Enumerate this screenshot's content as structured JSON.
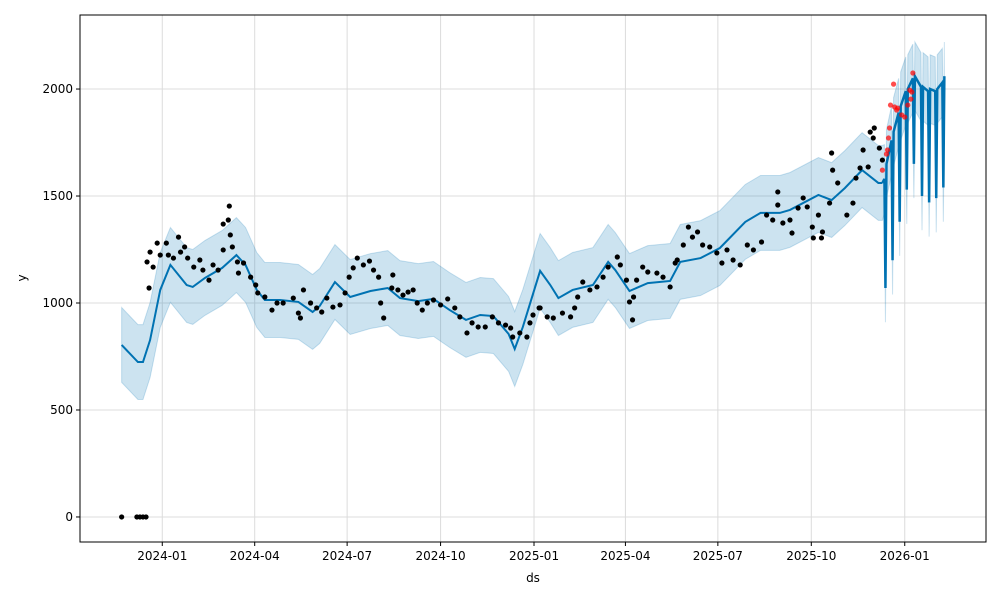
{
  "chart_data": {
    "type": "line",
    "title": "",
    "xlabel": "ds",
    "ylabel": "y",
    "x_origin_date": "2024-01-01",
    "x_units": "days since 2024-01-01",
    "ylim": [
      -117,
      2346
    ],
    "xlim": [
      -81,
      811
    ],
    "grid": true,
    "colors": {
      "forecast": "#0072B2",
      "interval": "#0072B2",
      "history_points": "#000000",
      "recent_points": "#ff0000"
    },
    "x_ticks": [
      {
        "day": 0,
        "label": "2024-01"
      },
      {
        "day": 91,
        "label": "2024-04"
      },
      {
        "day": 182,
        "label": "2024-07"
      },
      {
        "day": 274,
        "label": "2024-10"
      },
      {
        "day": 366,
        "label": "2025-01"
      },
      {
        "day": 456,
        "label": "2025-04"
      },
      {
        "day": 547,
        "label": "2025-07"
      },
      {
        "day": 639,
        "label": "2025-10"
      },
      {
        "day": 731,
        "label": "2026-01"
      }
    ],
    "y_ticks": [
      {
        "value": 0,
        "label": "0"
      },
      {
        "value": 500,
        "label": "500"
      },
      {
        "value": 1000,
        "label": "1000"
      },
      {
        "value": 1500,
        "label": "1500"
      },
      {
        "value": 2000,
        "label": "2000"
      }
    ],
    "history_interval_halfwidth": 175,
    "forecast_interval_halfwidth": 160,
    "yhat_history": [
      [
        -40,
        804
      ],
      [
        -24,
        724
      ],
      [
        -19,
        724
      ],
      [
        -12,
        827
      ],
      [
        -2,
        1061
      ],
      [
        8,
        1178
      ],
      [
        24,
        1084
      ],
      [
        30,
        1075
      ],
      [
        42,
        1117
      ],
      [
        59,
        1164
      ],
      [
        73,
        1224
      ],
      [
        82,
        1178
      ],
      [
        93,
        1061
      ],
      [
        101,
        1014
      ],
      [
        116,
        1014
      ],
      [
        134,
        1005
      ],
      [
        148,
        958
      ],
      [
        155,
        986
      ],
      [
        170,
        1098
      ],
      [
        185,
        1028
      ],
      [
        205,
        1056
      ],
      [
        222,
        1070
      ],
      [
        234,
        1023
      ],
      [
        252,
        1009
      ],
      [
        267,
        1019
      ],
      [
        283,
        967
      ],
      [
        299,
        921
      ],
      [
        313,
        944
      ],
      [
        326,
        939
      ],
      [
        341,
        855
      ],
      [
        347,
        785
      ],
      [
        355,
        888
      ],
      [
        372,
        1150
      ],
      [
        382,
        1084
      ],
      [
        390,
        1023
      ],
      [
        404,
        1061
      ],
      [
        424,
        1084
      ],
      [
        439,
        1192
      ],
      [
        446,
        1154
      ],
      [
        460,
        1056
      ],
      [
        478,
        1093
      ],
      [
        500,
        1103
      ],
      [
        510,
        1192
      ],
      [
        530,
        1210
      ],
      [
        549,
        1257
      ],
      [
        574,
        1379
      ],
      [
        589,
        1421
      ],
      [
        608,
        1421
      ],
      [
        618,
        1435
      ],
      [
        646,
        1505
      ],
      [
        659,
        1481
      ],
      [
        672,
        1537
      ],
      [
        689,
        1621
      ],
      [
        705,
        1561
      ],
      [
        709,
        1561
      ]
    ],
    "yhat_forecast": [
      [
        709,
        1561
      ],
      [
        711,
        1580
      ],
      [
        712,
        1070
      ],
      [
        713,
        1650
      ],
      [
        718,
        1760
      ],
      [
        719,
        1200
      ],
      [
        720,
        1800
      ],
      [
        725,
        1890
      ],
      [
        726,
        1380
      ],
      [
        727,
        1920
      ],
      [
        732,
        1990
      ],
      [
        733,
        1530
      ],
      [
        734,
        2000
      ],
      [
        739,
        2050
      ],
      [
        740,
        1650
      ],
      [
        741,
        2060
      ],
      [
        747,
        2010
      ],
      [
        748,
        1500
      ],
      [
        749,
        2010
      ],
      [
        754,
        1990
      ],
      [
        755,
        1470
      ],
      [
        756,
        2000
      ],
      [
        761,
        1990
      ],
      [
        762,
        1490
      ],
      [
        763,
        2000
      ],
      [
        768,
        2030
      ],
      [
        769,
        1540
      ],
      [
        770,
        2060
      ]
    ],
    "observed": [
      [
        -40,
        0
      ],
      [
        -25,
        0
      ],
      [
        -22,
        0
      ],
      [
        -19,
        0
      ],
      [
        -16,
        0
      ],
      [
        -15,
        1192
      ],
      [
        -12,
        1238
      ],
      [
        -13,
        1070
      ],
      [
        -9,
        1168
      ],
      [
        -5,
        1280
      ],
      [
        -2,
        1224
      ],
      [
        4,
        1280
      ],
      [
        6,
        1224
      ],
      [
        11,
        1210
      ],
      [
        16,
        1308
      ],
      [
        18,
        1238
      ],
      [
        22,
        1262
      ],
      [
        25,
        1210
      ],
      [
        31,
        1168
      ],
      [
        37,
        1201
      ],
      [
        40,
        1154
      ],
      [
        46,
        1107
      ],
      [
        50,
        1178
      ],
      [
        55,
        1154
      ],
      [
        60,
        1369
      ],
      [
        60,
        1248
      ],
      [
        65,
        1388
      ],
      [
        66,
        1453
      ],
      [
        67,
        1318
      ],
      [
        69,
        1262
      ],
      [
        74,
        1192
      ],
      [
        75,
        1140
      ],
      [
        80,
        1187
      ],
      [
        87,
        1121
      ],
      [
        92,
        1084
      ],
      [
        94,
        1047
      ],
      [
        101,
        1028
      ],
      [
        108,
        967
      ],
      [
        113,
        1000
      ],
      [
        119,
        1000
      ],
      [
        129,
        1023
      ],
      [
        134,
        953
      ],
      [
        136,
        930
      ],
      [
        139,
        1061
      ],
      [
        146,
        1000
      ],
      [
        152,
        977
      ],
      [
        157,
        958
      ],
      [
        162,
        1023
      ],
      [
        168,
        981
      ],
      [
        175,
        991
      ],
      [
        180,
        1047
      ],
      [
        184,
        1121
      ],
      [
        188,
        1164
      ],
      [
        192,
        1210
      ],
      [
        198,
        1178
      ],
      [
        204,
        1196
      ],
      [
        208,
        1154
      ],
      [
        213,
        1121
      ],
      [
        215,
        1000
      ],
      [
        218,
        930
      ],
      [
        226,
        1070
      ],
      [
        227,
        1131
      ],
      [
        232,
        1061
      ],
      [
        237,
        1037
      ],
      [
        242,
        1051
      ],
      [
        247,
        1061
      ],
      [
        251,
        1000
      ],
      [
        256,
        967
      ],
      [
        261,
        1000
      ],
      [
        267,
        1014
      ],
      [
        274,
        991
      ],
      [
        281,
        1019
      ],
      [
        288,
        977
      ],
      [
        293,
        935
      ],
      [
        300,
        860
      ],
      [
        305,
        907
      ],
      [
        311,
        888
      ],
      [
        318,
        888
      ],
      [
        325,
        935
      ],
      [
        331,
        907
      ],
      [
        338,
        897
      ],
      [
        343,
        883
      ],
      [
        345,
        841
      ],
      [
        352,
        860
      ],
      [
        359,
        841
      ],
      [
        362,
        907
      ],
      [
        365,
        944
      ],
      [
        371,
        977
      ],
      [
        372,
        977
      ],
      [
        379,
        935
      ],
      [
        385,
        930
      ],
      [
        394,
        953
      ],
      [
        402,
        935
      ],
      [
        406,
        977
      ],
      [
        409,
        1028
      ],
      [
        414,
        1098
      ],
      [
        421,
        1061
      ],
      [
        428,
        1075
      ],
      [
        434,
        1121
      ],
      [
        439,
        1168
      ],
      [
        448,
        1215
      ],
      [
        451,
        1178
      ],
      [
        457,
        1107
      ],
      [
        460,
        1005
      ],
      [
        464,
        1028
      ],
      [
        463,
        921
      ],
      [
        467,
        1107
      ],
      [
        473,
        1168
      ],
      [
        478,
        1145
      ],
      [
        487,
        1140
      ],
      [
        493,
        1121
      ],
      [
        500,
        1075
      ],
      [
        505,
        1187
      ],
      [
        507,
        1201
      ],
      [
        513,
        1271
      ],
      [
        518,
        1355
      ],
      [
        522,
        1308
      ],
      [
        527,
        1332
      ],
      [
        532,
        1271
      ],
      [
        539,
        1262
      ],
      [
        546,
        1234
      ],
      [
        551,
        1187
      ],
      [
        556,
        1248
      ],
      [
        562,
        1201
      ],
      [
        569,
        1178
      ],
      [
        576,
        1271
      ],
      [
        582,
        1248
      ],
      [
        590,
        1285
      ],
      [
        595,
        1411
      ],
      [
        601,
        1388
      ],
      [
        606,
        1519
      ],
      [
        606,
        1458
      ],
      [
        611,
        1374
      ],
      [
        618,
        1388
      ],
      [
        620,
        1327
      ],
      [
        626,
        1444
      ],
      [
        631,
        1491
      ],
      [
        635,
        1449
      ],
      [
        640,
        1355
      ],
      [
        641,
        1304
      ],
      [
        646,
        1411
      ],
      [
        650,
        1332
      ],
      [
        649,
        1304
      ],
      [
        657,
        1467
      ],
      [
        660,
        1621
      ],
      [
        665,
        1561
      ],
      [
        659,
        1701
      ],
      [
        674,
        1411
      ],
      [
        680,
        1467
      ],
      [
        683,
        1584
      ],
      [
        687,
        1631
      ],
      [
        690,
        1715
      ],
      [
        695,
        1636
      ],
      [
        697,
        1799
      ],
      [
        701,
        1818
      ],
      [
        700,
        1771
      ],
      [
        706,
        1724
      ],
      [
        709,
        1668
      ]
    ],
    "recent_observed": [
      [
        709,
        1621
      ],
      [
        713,
        1696
      ],
      [
        714,
        1715
      ],
      [
        715,
        1771
      ],
      [
        716,
        1818
      ],
      [
        717,
        1925
      ],
      [
        720,
        2023
      ],
      [
        721,
        1916
      ],
      [
        723,
        1902
      ],
      [
        724,
        1911
      ],
      [
        728,
        1879
      ],
      [
        731,
        1869
      ],
      [
        734,
        1925
      ],
      [
        736,
        1995
      ],
      [
        738,
        1986
      ],
      [
        737,
        1953
      ],
      [
        739,
        2075
      ]
    ]
  }
}
